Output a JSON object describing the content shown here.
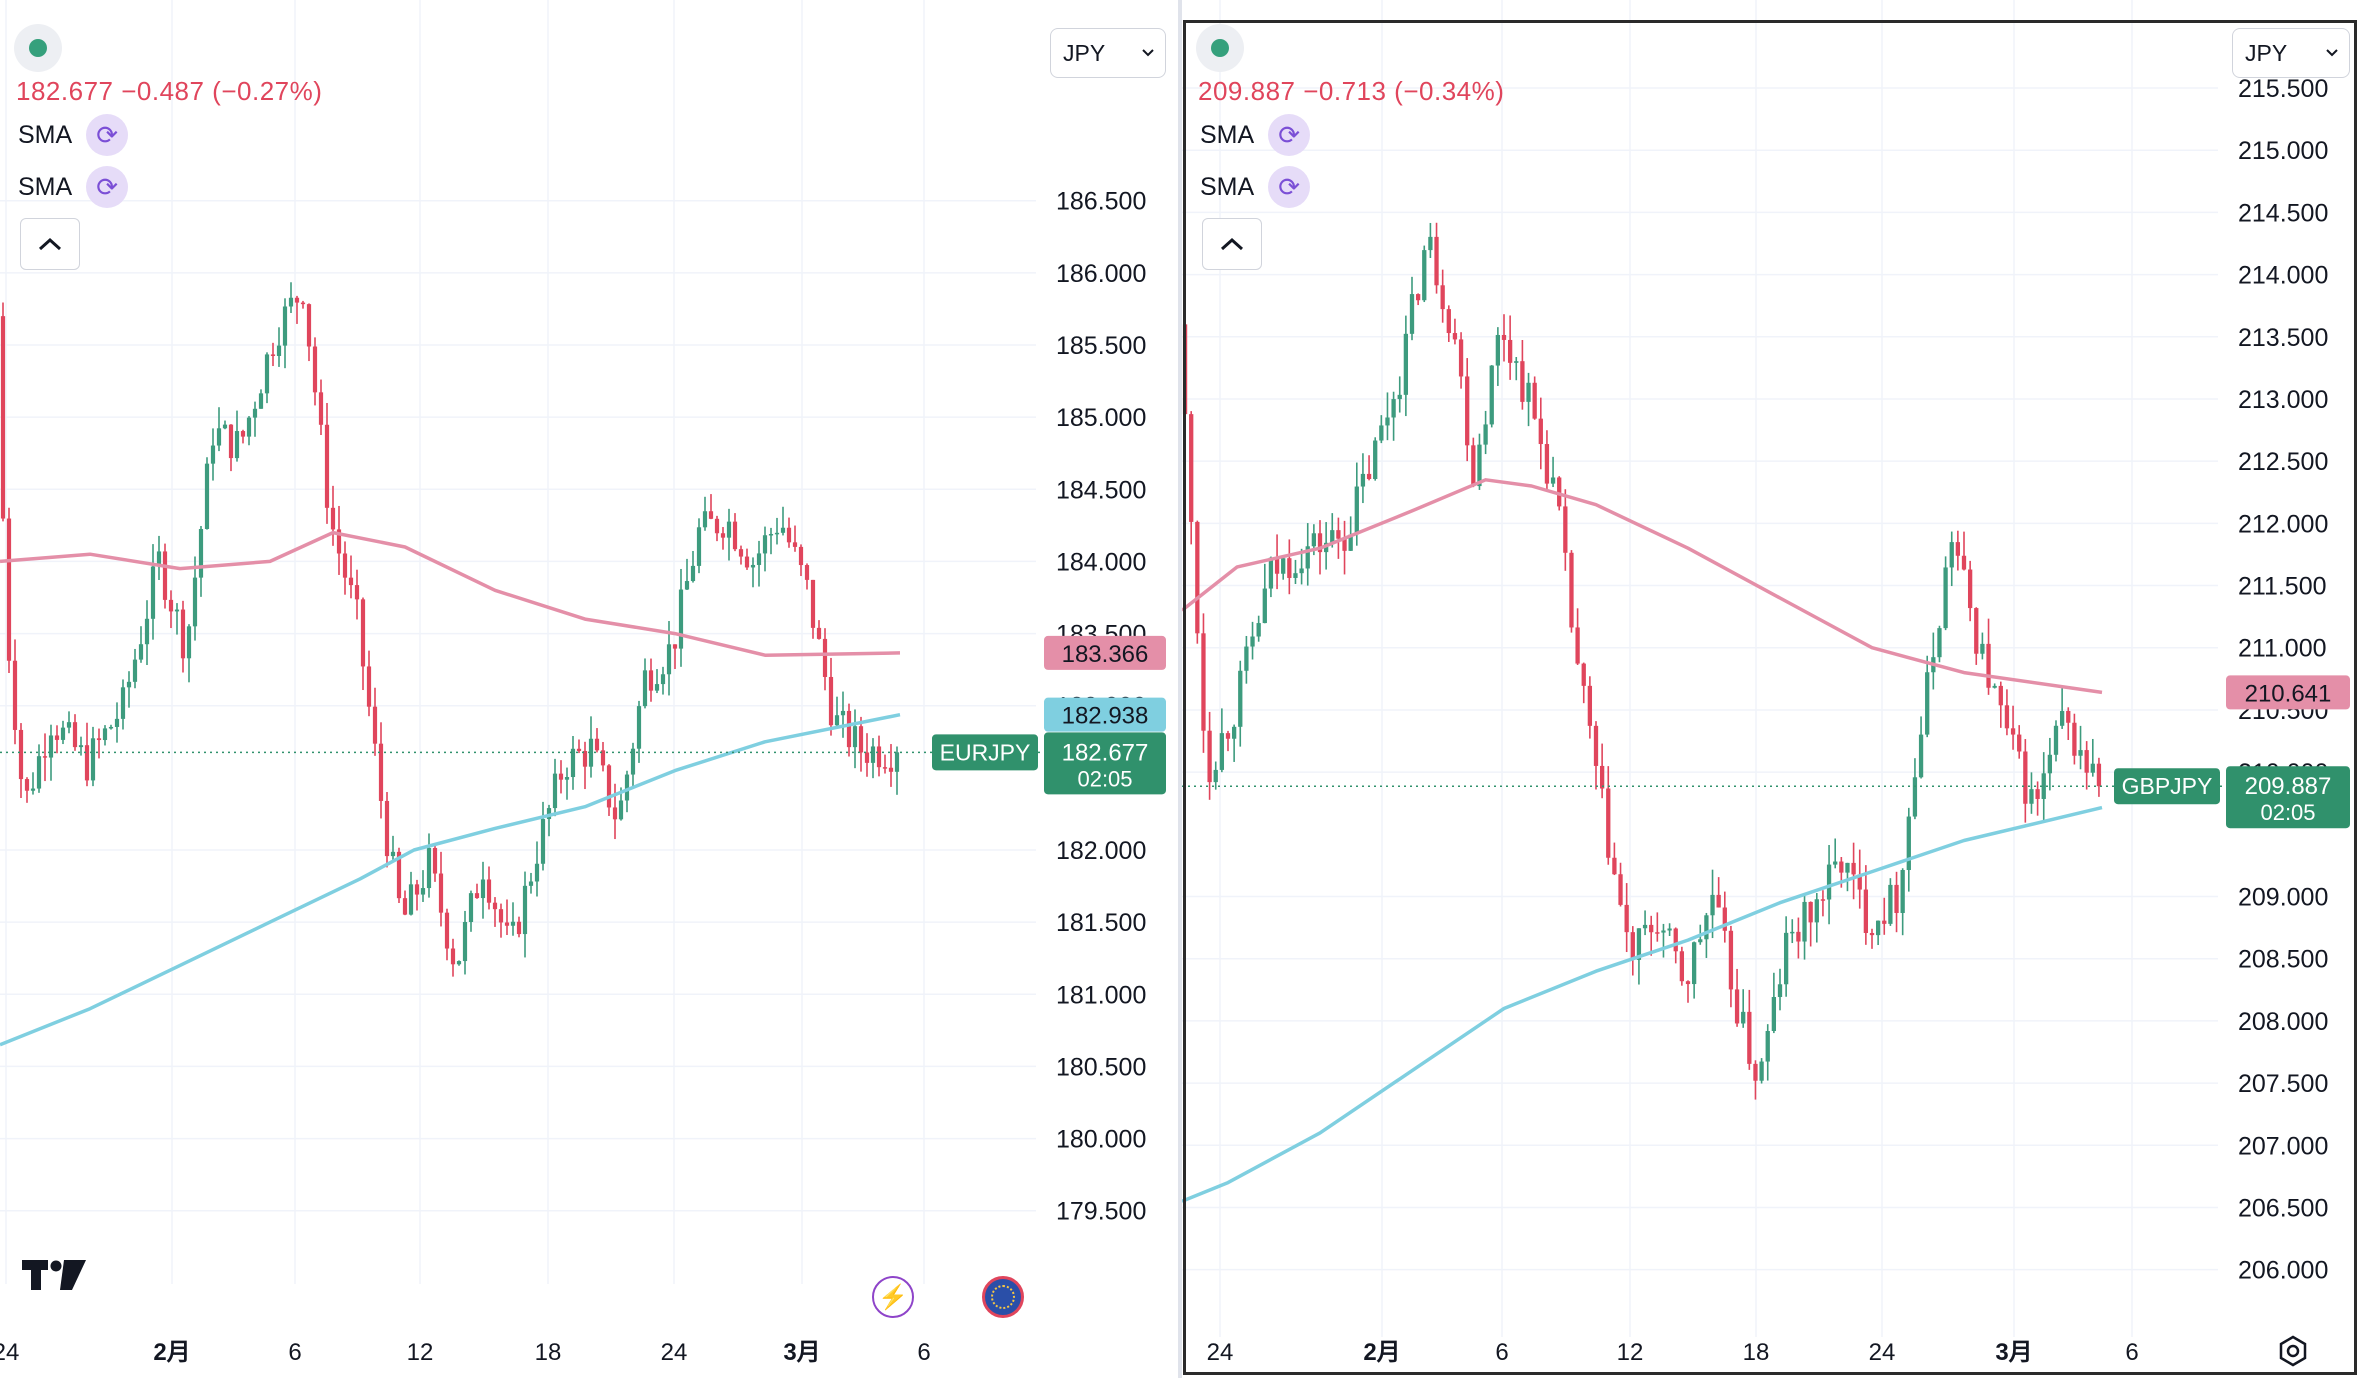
{
  "colors": {
    "up": "#3d9b7e",
    "down": "#e0455c",
    "sma_long": "#e48fa8",
    "sma_short": "#7fcfe0",
    "grid": "#f0f3fa",
    "axis_text": "#131722",
    "tag_symbol": "#30916c"
  },
  "left_pane": {
    "currency": "JPY",
    "price_line": "182.677  −0.487 (−0.27%)",
    "indicators": [
      {
        "label": "SMA",
        "icon": "refresh-icon"
      },
      {
        "label": "SMA",
        "icon": "refresh-icon"
      }
    ],
    "symbol": "EURJPY",
    "last_price": "182.677",
    "countdown": "02:05",
    "sma_long_value": "183.366",
    "sma_short_value": "182.938",
    "price_ticks": [
      "186.500",
      "186.000",
      "185.500",
      "185.000",
      "184.500",
      "184.000",
      "183.500",
      "183.000",
      "182.000",
      "181.500",
      "181.000",
      "180.500",
      "180.000",
      "179.500"
    ],
    "date_labels": [
      "24",
      "2月",
      "6",
      "12",
      "18",
      "24",
      "3月",
      "6"
    ]
  },
  "right_pane": {
    "currency": "JPY",
    "price_line": "209.887  −0.713 (−0.34%)",
    "indicators": [
      {
        "label": "SMA",
        "icon": "refresh-icon"
      },
      {
        "label": "SMA",
        "icon": "refresh-icon"
      }
    ],
    "symbol": "GBPJPY",
    "last_price": "209.887",
    "countdown": "02:05",
    "sma_long_value": "210.641",
    "sma_short_value": "209.715",
    "price_ticks": [
      "215.500",
      "215.000",
      "214.500",
      "214.000",
      "213.500",
      "213.000",
      "212.500",
      "212.000",
      "211.500",
      "211.000",
      "210.500",
      "210.000",
      "209.000",
      "208.500",
      "208.000",
      "207.500",
      "207.000",
      "206.500",
      "206.000"
    ],
    "date_labels": [
      "24",
      "2月",
      "6",
      "12",
      "18",
      "24",
      "3月",
      "6"
    ]
  },
  "chart_data": [
    {
      "type": "candlestick",
      "symbol": "EURJPY",
      "ylim": [
        179.2,
        186.9
      ],
      "close_path": [
        [
          0,
          185.7
        ],
        [
          0.01,
          183.6
        ],
        [
          0.03,
          182.3
        ],
        [
          0.06,
          182.9
        ],
        [
          0.1,
          182.6
        ],
        [
          0.14,
          183.0
        ],
        [
          0.18,
          184.0
        ],
        [
          0.21,
          183.4
        ],
        [
          0.24,
          184.9
        ],
        [
          0.27,
          184.8
        ],
        [
          0.31,
          185.6
        ],
        [
          0.34,
          185.9
        ],
        [
          0.37,
          184.3
        ],
        [
          0.4,
          183.6
        ],
        [
          0.43,
          182.2
        ],
        [
          0.45,
          181.5
        ],
        [
          0.48,
          181.9
        ],
        [
          0.51,
          181.2
        ],
        [
          0.54,
          181.9
        ],
        [
          0.57,
          181.3
        ],
        [
          0.6,
          182.0
        ],
        [
          0.63,
          182.6
        ],
        [
          0.66,
          182.7
        ],
        [
          0.69,
          182.2
        ],
        [
          0.72,
          183.2
        ],
        [
          0.75,
          183.4
        ],
        [
          0.78,
          184.2
        ],
        [
          0.81,
          184.3
        ],
        [
          0.84,
          184.0
        ],
        [
          0.87,
          184.3
        ],
        [
          0.9,
          183.8
        ],
        [
          0.93,
          182.9
        ],
        [
          0.96,
          182.7
        ],
        [
          1.0,
          182.677
        ]
      ],
      "sma_long": [
        [
          0,
          184.0
        ],
        [
          0.1,
          184.05
        ],
        [
          0.2,
          183.95
        ],
        [
          0.3,
          184.0
        ],
        [
          0.37,
          184.2
        ],
        [
          0.45,
          184.1
        ],
        [
          0.55,
          183.8
        ],
        [
          0.65,
          183.6
        ],
        [
          0.75,
          183.5
        ],
        [
          0.85,
          183.35
        ],
        [
          1.0,
          183.366
        ]
      ],
      "sma_short": [
        [
          0,
          180.65
        ],
        [
          0.1,
          180.9
        ],
        [
          0.2,
          181.2
        ],
        [
          0.3,
          181.5
        ],
        [
          0.4,
          181.8
        ],
        [
          0.46,
          182.0
        ],
        [
          0.55,
          182.15
        ],
        [
          0.65,
          182.3
        ],
        [
          0.75,
          182.55
        ],
        [
          0.85,
          182.75
        ],
        [
          1.0,
          182.938
        ]
      ]
    },
    {
      "type": "candlestick",
      "symbol": "GBPJPY",
      "ylim": [
        205.7,
        215.5
      ],
      "close_path": [
        [
          0,
          213.6
        ],
        [
          0.03,
          210.0
        ],
        [
          0.06,
          210.5
        ],
        [
          0.1,
          211.6
        ],
        [
          0.14,
          211.8
        ],
        [
          0.18,
          211.9
        ],
        [
          0.21,
          212.5
        ],
        [
          0.24,
          213.2
        ],
        [
          0.27,
          214.3
        ],
        [
          0.3,
          213.5
        ],
        [
          0.32,
          212.4
        ],
        [
          0.35,
          213.6
        ],
        [
          0.38,
          213.0
        ],
        [
          0.41,
          212.2
        ],
        [
          0.43,
          211.0
        ],
        [
          0.46,
          209.7
        ],
        [
          0.49,
          208.5
        ],
        [
          0.52,
          208.8
        ],
        [
          0.55,
          208.3
        ],
        [
          0.58,
          209.0
        ],
        [
          0.61,
          208.0
        ],
        [
          0.63,
          207.5
        ],
        [
          0.66,
          208.6
        ],
        [
          0.69,
          208.9
        ],
        [
          0.72,
          209.3
        ],
        [
          0.75,
          208.8
        ],
        [
          0.78,
          209.0
        ],
        [
          0.81,
          210.5
        ],
        [
          0.84,
          211.9
        ],
        [
          0.87,
          211.0
        ],
        [
          0.9,
          210.3
        ],
        [
          0.93,
          209.7
        ],
        [
          0.96,
          210.4
        ],
        [
          1.0,
          209.887
        ]
      ],
      "sma_long": [
        [
          0,
          211.3
        ],
        [
          0.06,
          211.65
        ],
        [
          0.15,
          211.8
        ],
        [
          0.25,
          212.1
        ],
        [
          0.33,
          212.35
        ],
        [
          0.38,
          212.3
        ],
        [
          0.45,
          212.15
        ],
        [
          0.55,
          211.8
        ],
        [
          0.65,
          211.4
        ],
        [
          0.75,
          211.0
        ],
        [
          0.85,
          210.8
        ],
        [
          1.0,
          210.641
        ]
      ],
      "sma_short": [
        [
          0,
          206.55
        ],
        [
          0.05,
          206.7
        ],
        [
          0.15,
          207.1
        ],
        [
          0.25,
          207.6
        ],
        [
          0.35,
          208.1
        ],
        [
          0.45,
          208.4
        ],
        [
          0.55,
          208.65
        ],
        [
          0.65,
          208.95
        ],
        [
          0.75,
          209.2
        ],
        [
          0.85,
          209.45
        ],
        [
          1.0,
          209.715
        ]
      ]
    }
  ]
}
